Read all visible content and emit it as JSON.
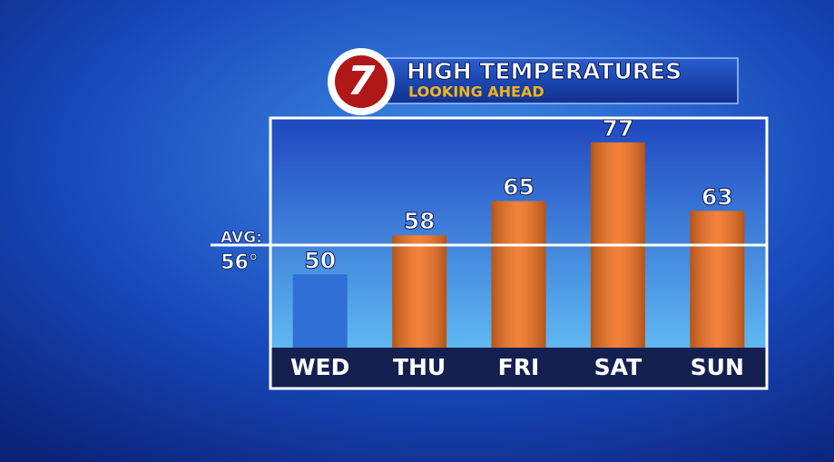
{
  "chart_data": {
    "type": "bar",
    "logo": "7",
    "title": "HIGH TEMPERATURES",
    "subtitle": "LOOKING AHEAD",
    "categories": [
      "WED",
      "THU",
      "FRI",
      "SAT",
      "SUN"
    ],
    "values": [
      50,
      58,
      65,
      77,
      63
    ],
    "colors": [
      "#2f6fd6",
      "#f07020",
      "#f07020",
      "#f07020",
      "#f07020"
    ],
    "ylim": [
      35,
      82
    ],
    "average": {
      "label": "AVG:",
      "value": 56,
      "value_label": "56°"
    }
  }
}
